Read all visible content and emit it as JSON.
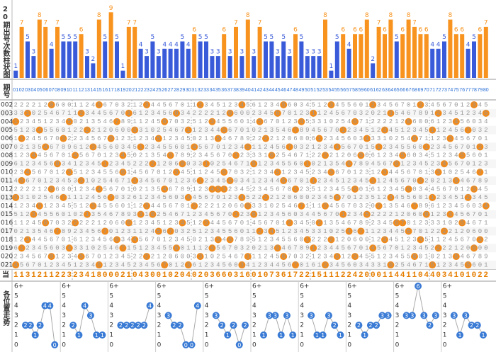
{
  "bars": {
    "label": "20期出号次数柱状图",
    "high_color": "#f7931e",
    "low_color": "#3a5bd9",
    "high_from": 6,
    "values": [
      1,
      7,
      5,
      3,
      8,
      7,
      4,
      7,
      5,
      5,
      5,
      6,
      3,
      2,
      8,
      5,
      9,
      5,
      1,
      7,
      7,
      4,
      3,
      5,
      3,
      4,
      4,
      4,
      5,
      4,
      6,
      5,
      5,
      3,
      3,
      6,
      3,
      7,
      3,
      8,
      3,
      7,
      5,
      5,
      3,
      5,
      3,
      6,
      5,
      3,
      3,
      3,
      8,
      1,
      5,
      6,
      4,
      6,
      6,
      8,
      2,
      7,
      6,
      8,
      5,
      6,
      8,
      7,
      6,
      6,
      4,
      4,
      5,
      8,
      6,
      6,
      4,
      5,
      6,
      7
    ]
  },
  "header": {
    "label": "期号",
    "numbers": [
      "01",
      "02",
      "03",
      "04",
      "05",
      "06",
      "07",
      "08",
      "09",
      "10",
      "11",
      "12",
      "13",
      "14",
      "15",
      "16",
      "17",
      "18",
      "19",
      "20",
      "21",
      "22",
      "23",
      "24",
      "25",
      "26",
      "27",
      "28",
      "29",
      "30",
      "31",
      "32",
      "33",
      "34",
      "35",
      "36",
      "37",
      "38",
      "39",
      "40",
      "41",
      "42",
      "43",
      "44",
      "45",
      "46",
      "47",
      "48",
      "49",
      "50",
      "51",
      "52",
      "53",
      "54",
      "55",
      "56",
      "57",
      "58",
      "59",
      "60",
      "61",
      "62",
      "63",
      "64",
      "65",
      "66",
      "67",
      "68",
      "69",
      "70",
      "71",
      "72",
      "73",
      "74",
      "75",
      "76",
      "77",
      "78",
      "79",
      "80"
    ]
  },
  "grid": {
    "hit_color": "#f08a1c",
    "rows": [
      {
        "label": "002",
        "cells": [
          "2222120600",
          "1124567032",
          "1234456701",
          "1234512345",
          "6123456034",
          "5123455601",
          "2345670123",
          "4567012345"
        ],
        "hits": [
          6,
          14,
          22,
          31,
          38,
          45,
          53,
          60,
          68,
          77
        ]
      },
      {
        "label": "003",
        "cells": [
          "3310254671",
          "1234456701",
          "6123456034",
          "2222120600",
          "2345670123",
          "1124567032",
          "0213546789",
          "1234512345"
        ],
        "hits": [
          2,
          11,
          19,
          27,
          36,
          44,
          50,
          63,
          71,
          79
        ]
      },
      {
        "label": "004",
        "cells": [
          "1234512345",
          "0213546789",
          "1124567032",
          "5123455601",
          "4567012345",
          "3310254671",
          "2222120600",
          "6123456034"
        ],
        "hits": [
          0,
          9,
          17,
          25,
          33,
          41,
          48,
          57,
          66,
          74
        ]
      },
      {
        "label": "005",
        "cells": [
          "5123455601",
          "2222120600",
          "3310254671",
          "1234456701",
          "0213546789",
          "4567012345",
          "1234512345",
          "1124567032"
        ],
        "hits": [
          4,
          12,
          20,
          29,
          35,
          47,
          55,
          62,
          70,
          76
        ]
      },
      {
        "label": "006",
        "cells": [
          "1124567032",
          "2345670123",
          "1234512345",
          "0213546789",
          "2222120600",
          "6123456034",
          "3310254671",
          "1234456701"
        ],
        "hits": [
          1,
          8,
          16,
          24,
          34,
          42,
          51,
          59,
          67,
          73
        ]
      },
      {
        "label": "007",
        "cells": [
          "0213546789",
          "6123456034",
          "5123455601",
          "4567012345",
          "1124567032",
          "1234456701",
          "5123455601",
          "2345670123"
        ],
        "hits": [
          5,
          13,
          21,
          30,
          39,
          46,
          54,
          61,
          69,
          78
        ]
      },
      {
        "label": "008",
        "cells": [
          "1234456701",
          "4567012345",
          "0213546789",
          "2345670123",
          "3310254671",
          "2222120600",
          "6123456034",
          "5123455601"
        ],
        "hits": [
          3,
          10,
          18,
          26,
          37,
          43,
          52,
          58,
          65,
          75
        ]
      },
      {
        "label": "009",
        "cells": [
          "6123456034",
          "1234512345",
          "2222120600",
          "3310254671",
          "5123455601",
          "0213546789",
          "4567012345",
          "2345670123"
        ],
        "hits": [
          7,
          15,
          23,
          28,
          32,
          40,
          49,
          56,
          64,
          72
        ]
      },
      {
        "label": "010",
        "cells": [
          "2345670123",
          "5123455601",
          "4567012345",
          "1124567032",
          "1234512345",
          "2345670123",
          "1234456701",
          "3310254671"
        ],
        "hits": [
          2,
          9,
          18,
          27,
          35,
          44,
          53,
          62,
          71,
          78
        ]
      },
      {
        "label": "011",
        "cells": [
          "4567012345",
          "3310254671",
          "2345670123",
          "6123456034",
          "1234456701",
          "1234512345",
          "1124567032",
          "0213546789"
        ],
        "hits": [
          1,
          11,
          20,
          31,
          36,
          45,
          50,
          60,
          68,
          74
        ]
      },
      {
        "label": "012",
        "cells": [
          "2222120600",
          "1234456701",
          "0213546789",
          "1234512345",
          "2345670123",
          "5123455601",
          "6123456034",
          "4567012345"
        ],
        "hits": [
          6,
          14,
          25,
          33,
          34,
          35,
          47,
          57,
          66,
          77
        ]
      },
      {
        "label": "013",
        "cells": [
          "3310254671",
          "1124567032",
          "6123456034",
          "4567012345",
          "2222120600",
          "2345670123",
          "5123455601",
          "1234512345"
        ],
        "hits": [
          0,
          8,
          16,
          29,
          38,
          42,
          54,
          63,
          70,
          76
        ]
      },
      {
        "label": "014",
        "cells": [
          "1234512345",
          "5123455601",
          "1234456701",
          "2222120600",
          "3310254671",
          "1124567032",
          "0213546789",
          "6123456034"
        ],
        "hits": [
          4,
          13,
          22,
          30,
          39,
          48,
          52,
          61,
          67,
          79
        ]
      },
      {
        "label": "015",
        "cells": [
          "5123455601",
          "0213546789",
          "3310254671",
          "2345670123",
          "6123456034",
          "4567012345",
          "2222120600",
          "1234456701"
        ],
        "hits": [
          3,
          12,
          21,
          23,
          37,
          40,
          55,
          59,
          69,
          73
        ]
      },
      {
        "label": "016",
        "cells": [
          "1124567032",
          "2222120600",
          "1234512345",
          "1234456701",
          "4567012345",
          "0213546789",
          "2345670123",
          "3310254671"
        ],
        "hits": [
          5,
          10,
          19,
          28,
          32,
          46,
          51,
          64,
          65,
          75
        ]
      },
      {
        "label": "017",
        "cells": [
          "0213546789",
          "2345670123",
          "1124567032",
          "5123455601",
          "1234512345",
          "3310254671",
          "1234456701",
          "2222120600"
        ],
        "hits": [
          7,
          15,
          24,
          26,
          41,
          43,
          56,
          58,
          66,
          72
        ]
      },
      {
        "label": "018",
        "cells": [
          "1234456701",
          "6123456034",
          "4567012345",
          "0213546789",
          "5123455601",
          "2222120600",
          "1234512345",
          "1124567032"
        ],
        "hits": [
          2,
          17,
          20,
          34,
          36,
          49,
          53,
          62,
          68,
          78
        ]
      },
      {
        "label": "019",
        "cells": [
          "6123456034",
          "3310254671",
          "5123455601",
          "1124567032",
          "0213546789",
          "1234456701",
          "4567012345",
          "2222120600"
        ],
        "hits": [
          1,
          9,
          18,
          27,
          33,
          44,
          50,
          60,
          71,
          77
        ]
      },
      {
        "label": "020",
        "cells": [
          "2345670123",
          "4567012345",
          "2222120600",
          "3310254671",
          "1124567032",
          "1234512345",
          "5123455601",
          "0213546789"
        ],
        "hits": [
          6,
          11,
          22,
          31,
          39,
          45,
          54,
          57,
          67,
          74
        ]
      },
      {
        "label": "021",
        "cells": [
          "4567012345",
          "1234512345",
          "2345670123",
          "6123456034",
          "1234456701",
          "6123456034",
          "3310254671",
          "5123455601"
        ],
        "hits": [
          0,
          14,
          25,
          29,
          38,
          47,
          52,
          63,
          70,
          76
        ]
      }
    ]
  },
  "current": {
    "label": "当",
    "cells": [
      "1131211223",
      "2341800021",
      "0430010204",
      "0203660316",
      "0107361722",
      "1511122420",
      "0011441104",
      "4034101022"
    ]
  },
  "trend": {
    "label": "各位置走势",
    "point_color": "#3a7bd5",
    "yticks": [
      {
        "value": 6,
        "label": "6+"
      },
      5,
      4,
      3,
      2,
      1,
      0
    ],
    "charts": [
      {
        "values": [
          2,
          2,
          1,
          2,
          4,
          4,
          0
        ]
      },
      {
        "values": [
          2,
          1,
          4,
          3,
          1,
          1
        ]
      },
      {
        "values": [
          2,
          2,
          2,
          2,
          2,
          4
        ]
      },
      {
        "values": [
          3,
          2,
          2,
          0,
          0,
          4
        ]
      },
      {
        "values": [
          3,
          2,
          1,
          2,
          0,
          2
        ]
      },
      {
        "values": [
          1,
          3,
          3,
          1,
          3,
          1
        ]
      },
      {
        "values": [
          3,
          1,
          1,
          3,
          2,
          1
        ]
      },
      {
        "values": [
          2,
          1,
          2,
          2,
          3,
          3
        ]
      },
      {
        "values": [
          3,
          3,
          6,
          3,
          2,
          3
        ]
      },
      {
        "values": [
          3,
          1,
          3,
          2,
          2,
          1
        ]
      }
    ]
  }
}
